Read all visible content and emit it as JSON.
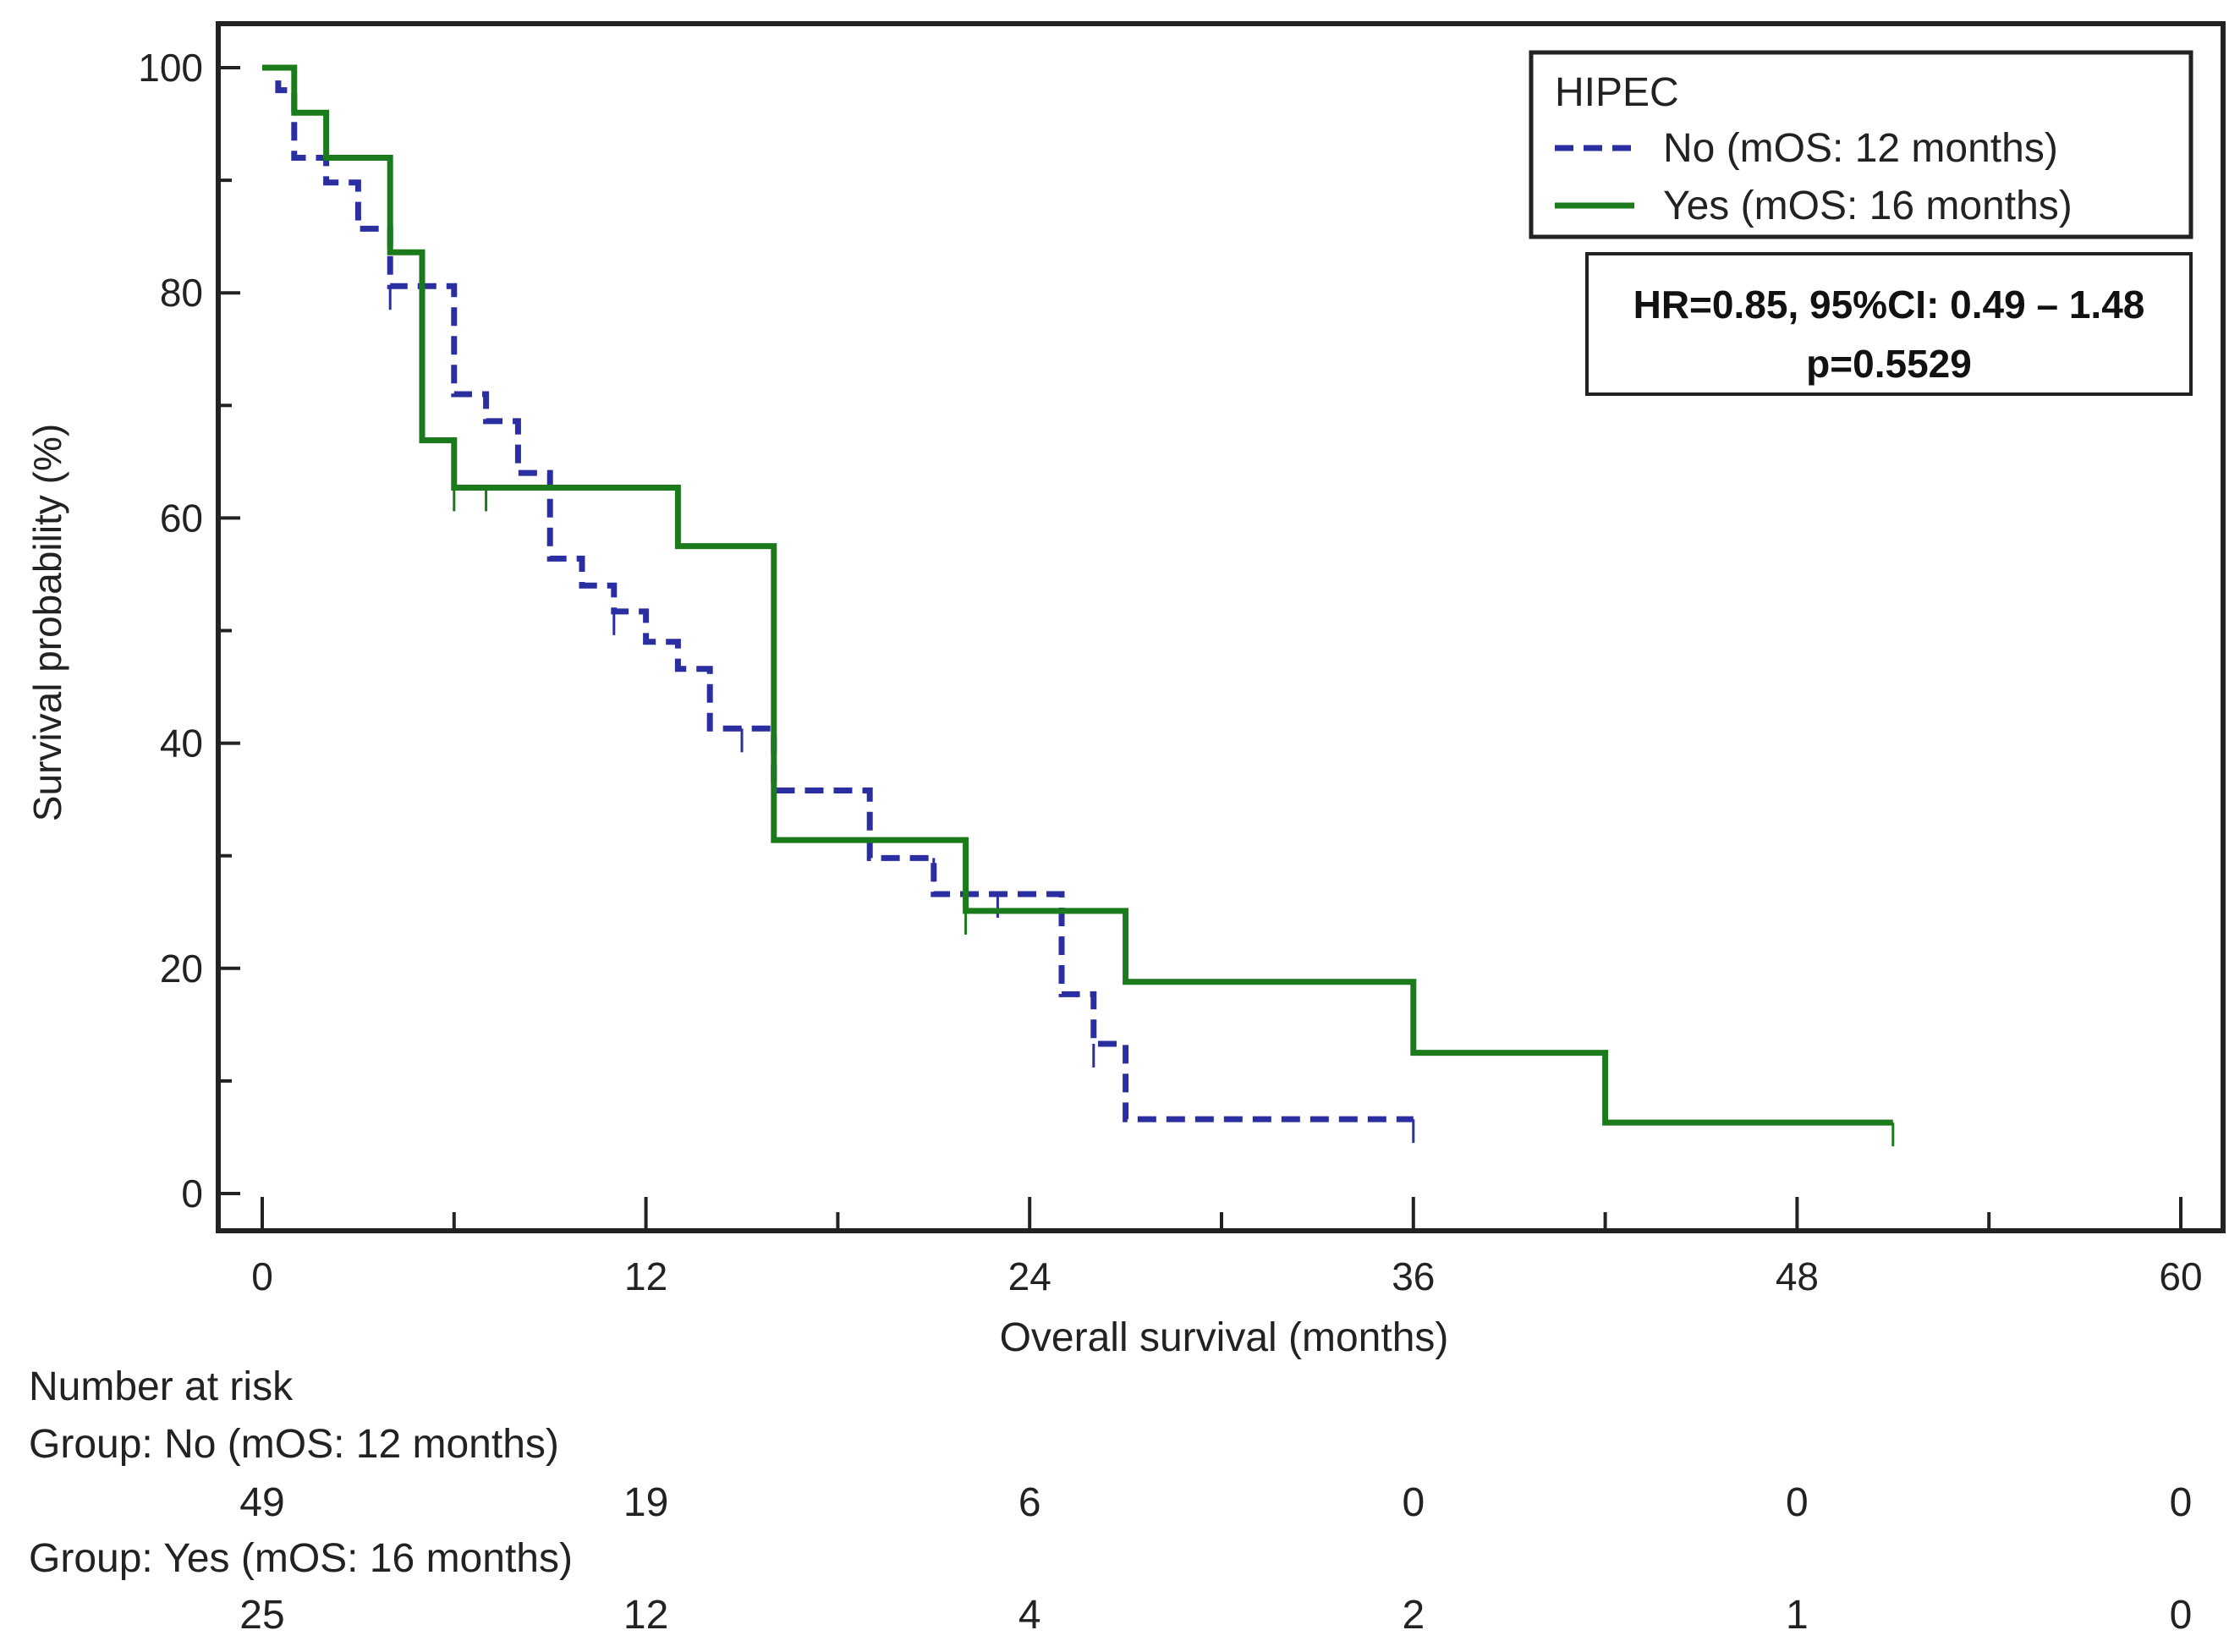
{
  "chart_data": {
    "type": "line",
    "subtype": "kaplan-meier",
    "xlabel": "Overall survival (months)",
    "ylabel": "Survival probability (%)",
    "xlim": [
      0,
      60
    ],
    "ylim": [
      0,
      100
    ],
    "x_ticks": [
      0,
      12,
      24,
      36,
      48,
      60
    ],
    "y_ticks": [
      0,
      20,
      40,
      60,
      80,
      100
    ],
    "legend": {
      "title": "HIPEC",
      "position": "top-right",
      "entries": [
        "No (mOS: 12 months)",
        "Yes (mOS: 16 months)"
      ]
    },
    "annotation": {
      "line1": "HR=0.85, 95%CI: 0.49 – 1.48",
      "line2": "p=0.5529"
    },
    "series": [
      {
        "name": "No (mOS: 12 months)",
        "color": "#2a2ea0",
        "style": "dashed",
        "steps": [
          [
            0,
            100
          ],
          [
            0.5,
            98
          ],
          [
            1,
            92
          ],
          [
            2,
            89.8
          ],
          [
            3,
            85.7
          ],
          [
            4,
            80.6
          ],
          [
            6,
            78
          ],
          [
            6,
            71
          ],
          [
            7,
            68.6
          ],
          [
            8,
            64
          ],
          [
            9,
            63
          ],
          [
            9,
            56.4
          ],
          [
            10,
            54
          ],
          [
            11,
            51.7
          ],
          [
            12,
            49
          ],
          [
            13,
            46.6
          ],
          [
            14,
            41.3
          ],
          [
            16,
            35.8
          ],
          [
            19,
            29.8
          ],
          [
            21,
            26.6
          ],
          [
            25,
            17.7
          ],
          [
            26,
            13.3
          ],
          [
            27,
            6.6
          ],
          [
            36,
            6.6
          ]
        ],
        "end_x": 36,
        "censored": [
          [
            4,
            80.6
          ],
          [
            11,
            51.7
          ],
          [
            15,
            41.3
          ],
          [
            21,
            29.8
          ],
          [
            23,
            26.6
          ],
          [
            26,
            13.3
          ],
          [
            36,
            6.6
          ]
        ]
      },
      {
        "name": "Yes (mOS: 16 months)",
        "color": "#1b7a1b",
        "style": "solid",
        "steps": [
          [
            0,
            100
          ],
          [
            1,
            96
          ],
          [
            2,
            92
          ],
          [
            4,
            83.6
          ],
          [
            5,
            66.9
          ],
          [
            6,
            62.7
          ],
          [
            13,
            57.5
          ],
          [
            16,
            31.4
          ],
          [
            22,
            25.1
          ],
          [
            27,
            18.8
          ],
          [
            36,
            12.5
          ],
          [
            42,
            6.3
          ],
          [
            51,
            6.3
          ]
        ],
        "end_x": 51,
        "censored": [
          [
            6,
            62.7
          ],
          [
            7,
            62.7
          ],
          [
            22,
            25.1
          ],
          [
            51,
            6.3
          ]
        ]
      }
    ],
    "risk_table": {
      "title": "Number at risk",
      "times": [
        0,
        12,
        24,
        36,
        48,
        60
      ],
      "groups": [
        {
          "label": "Group: No (mOS: 12 months)",
          "values": [
            49,
            19,
            6,
            0,
            0,
            0
          ]
        },
        {
          "label": "Group: Yes (mOS: 16 months)",
          "values": [
            25,
            12,
            4,
            2,
            1,
            0
          ]
        }
      ]
    }
  }
}
